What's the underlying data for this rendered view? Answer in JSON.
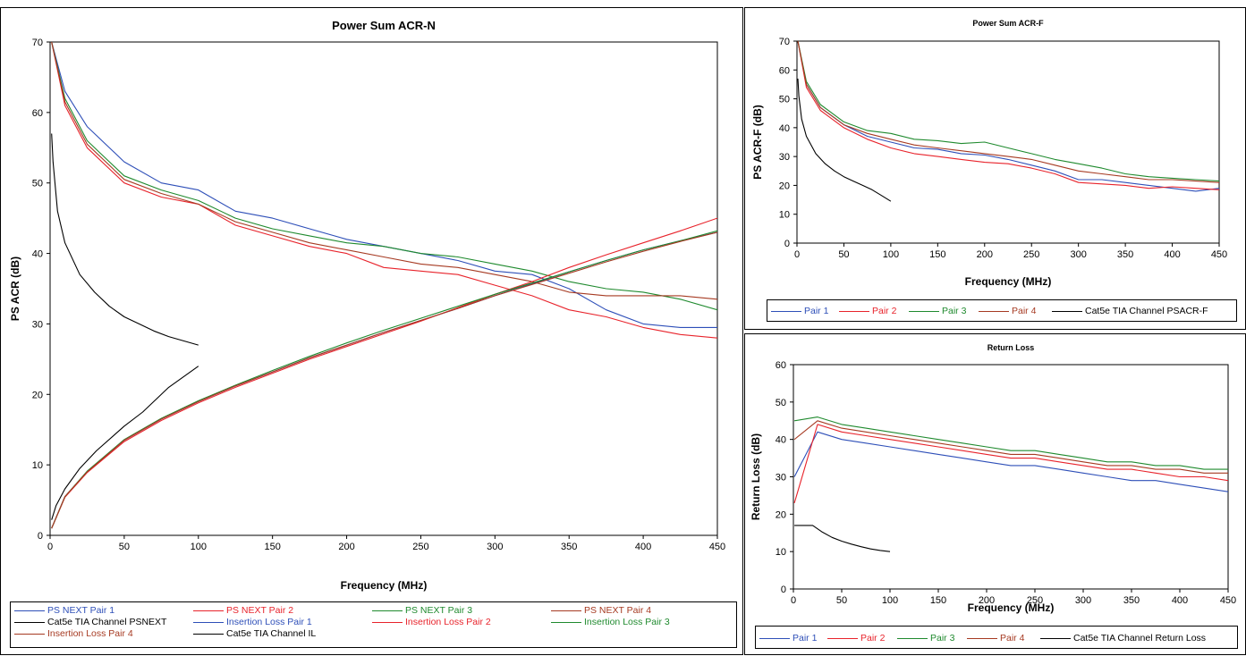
{
  "chart_data": [
    {
      "id": "acrn",
      "type": "line",
      "title": "Power Sum ACR-N",
      "xlabel": "Frequency (MHz)",
      "ylabel": "PS ACR (dB)",
      "xlim": [
        0,
        450
      ],
      "ylim": [
        0,
        70
      ],
      "xticks": [
        0,
        50,
        100,
        150,
        200,
        250,
        300,
        350,
        400,
        450
      ],
      "yticks": [
        0,
        10,
        20,
        30,
        40,
        50,
        60,
        70
      ],
      "grid": false,
      "legend_position": "bottom",
      "series": [
        {
          "name": "PS NEXT Pair 1",
          "color": "#2e4fb8",
          "x": [
            1,
            10,
            25,
            50,
            75,
            100,
            125,
            150,
            175,
            200,
            225,
            250,
            275,
            300,
            325,
            350,
            375,
            400,
            425,
            450
          ],
          "y": [
            70,
            63,
            58,
            53,
            50,
            49,
            46,
            45,
            43.5,
            42,
            41,
            40,
            39,
            37.5,
            37,
            35,
            32,
            30,
            29.5,
            29.5
          ]
        },
        {
          "name": "PS NEXT Pair 2",
          "color": "#e8232b",
          "x": [
            1,
            10,
            25,
            50,
            75,
            100,
            125,
            150,
            175,
            200,
            225,
            250,
            275,
            300,
            325,
            350,
            375,
            400,
            425,
            450
          ],
          "y": [
            70,
            61,
            55,
            50,
            48,
            47,
            44,
            42.5,
            41,
            40,
            38,
            37.5,
            37,
            35.5,
            34,
            32,
            31,
            29.5,
            28.5,
            28
          ]
        },
        {
          "name": "PS NEXT Pair 3",
          "color": "#1f8a2e",
          "x": [
            1,
            10,
            25,
            50,
            75,
            100,
            125,
            150,
            175,
            200,
            225,
            250,
            275,
            300,
            325,
            350,
            375,
            400,
            425,
            450
          ],
          "y": [
            70,
            62,
            56,
            51,
            49,
            47.5,
            45,
            43.5,
            42.5,
            41.5,
            41,
            40,
            39.5,
            38.5,
            37.5,
            36,
            35,
            34.5,
            33.5,
            32
          ]
        },
        {
          "name": "PS NEXT Pair 4",
          "color": "#a63a22",
          "x": [
            1,
            10,
            25,
            50,
            75,
            100,
            125,
            150,
            175,
            200,
            225,
            250,
            275,
            300,
            325,
            350,
            375,
            400,
            425,
            450
          ],
          "y": [
            70,
            61.5,
            55.5,
            50.5,
            48.5,
            47,
            44.5,
            43,
            41.5,
            40.5,
            39.5,
            38.5,
            38,
            37,
            36,
            34.5,
            34,
            34,
            34,
            33.5
          ]
        },
        {
          "name": "Cat5e TIA Channel PSNEXT",
          "color": "#000000",
          "x": [
            1,
            2,
            5,
            10,
            20,
            30,
            40,
            50,
            60,
            70,
            80,
            90,
            100
          ],
          "y": [
            57,
            53,
            46,
            41.5,
            37,
            34.5,
            32.5,
            31,
            30,
            29,
            28.2,
            27.6,
            27
          ]
        },
        {
          "name": "Insertion Loss Pair 1",
          "color": "#2e4fb8",
          "x": [
            1,
            10,
            25,
            50,
            75,
            100,
            125,
            150,
            175,
            200,
            225,
            250,
            275,
            300,
            325,
            350,
            375,
            400,
            425,
            450
          ],
          "y": [
            1,
            5.5,
            9,
            13.5,
            16.5,
            19,
            21.2,
            23.2,
            25.2,
            27,
            28.8,
            30.5,
            32.2,
            34,
            35.7,
            37.4,
            39,
            40.5,
            41.8,
            43
          ]
        },
        {
          "name": "Insertion Loss Pair 2",
          "color": "#e8232b",
          "x": [
            1,
            10,
            25,
            50,
            75,
            100,
            125,
            150,
            175,
            200,
            225,
            250,
            275,
            300,
            325,
            350,
            375,
            400,
            425,
            450
          ],
          "y": [
            1,
            5.4,
            8.9,
            13.3,
            16.3,
            18.8,
            21,
            23,
            25,
            26.8,
            28.6,
            30.4,
            32.3,
            34.2,
            36,
            38,
            39.8,
            41.5,
            43.2,
            45
          ]
        },
        {
          "name": "Insertion Loss Pair 3",
          "color": "#1f8a2e",
          "x": [
            1,
            10,
            25,
            50,
            75,
            100,
            125,
            150,
            175,
            200,
            225,
            250,
            275,
            300,
            325,
            350,
            375,
            400,
            425,
            450
          ],
          "y": [
            1,
            5.5,
            9.1,
            13.6,
            16.6,
            19.1,
            21.3,
            23.4,
            25.4,
            27.3,
            29.1,
            30.8,
            32.5,
            34.2,
            35.8,
            37.4,
            39,
            40.5,
            41.8,
            43.2
          ]
        },
        {
          "name": "Insertion Loss Pair 4",
          "color": "#a63a22",
          "x": [
            1,
            10,
            25,
            50,
            75,
            100,
            125,
            150,
            175,
            200,
            225,
            250,
            275,
            300,
            325,
            350,
            375,
            400,
            425,
            450
          ],
          "y": [
            1,
            5.5,
            9,
            13.5,
            16.5,
            19,
            21.2,
            23.2,
            25.2,
            27,
            28.8,
            30.5,
            32.2,
            34,
            35.6,
            37.2,
            38.8,
            40.3,
            41.7,
            43
          ]
        },
        {
          "name": "Cat5e TIA Channel IL",
          "color": "#000000",
          "x": [
            1,
            4,
            10,
            20,
            31.25,
            50,
            62.5,
            80,
            100
          ],
          "y": [
            2.2,
            4.2,
            6.6,
            9.5,
            12,
            15.5,
            17.5,
            21,
            24
          ]
        }
      ]
    },
    {
      "id": "acrf",
      "type": "line",
      "title": "Power Sum ACR-F",
      "xlabel": "Frequency (MHz)",
      "ylabel": "PS ACR-F (dB)",
      "xlim": [
        0,
        450
      ],
      "ylim": [
        0,
        70
      ],
      "xticks": [
        0,
        50,
        100,
        150,
        200,
        250,
        300,
        350,
        400,
        450
      ],
      "yticks": [
        0,
        10,
        20,
        30,
        40,
        50,
        60,
        70
      ],
      "grid": false,
      "legend_position": "bottom",
      "series": [
        {
          "name": "Pair 1",
          "color": "#2e4fb8",
          "x": [
            1,
            10,
            25,
            50,
            75,
            100,
            125,
            150,
            175,
            200,
            225,
            250,
            275,
            300,
            325,
            350,
            375,
            400,
            425,
            450
          ],
          "y": [
            70,
            55,
            47,
            41,
            37,
            35,
            33,
            32.5,
            31,
            30.5,
            29,
            27,
            25,
            22,
            22,
            21,
            20,
            19,
            18,
            19
          ]
        },
        {
          "name": "Pair 2",
          "color": "#e8232b",
          "x": [
            1,
            10,
            25,
            50,
            75,
            100,
            125,
            150,
            175,
            200,
            225,
            250,
            275,
            300,
            325,
            350,
            375,
            400,
            425,
            450
          ],
          "y": [
            70,
            54,
            46,
            40,
            36,
            33,
            31,
            30,
            29,
            28,
            27.5,
            26,
            24,
            21,
            20.5,
            20,
            19,
            19.5,
            19,
            18.5
          ]
        },
        {
          "name": "Pair 3",
          "color": "#1f8a2e",
          "x": [
            1,
            10,
            25,
            50,
            75,
            100,
            125,
            150,
            175,
            200,
            225,
            250,
            275,
            300,
            325,
            350,
            375,
            400,
            425,
            450
          ],
          "y": [
            70,
            56,
            48,
            42,
            39,
            38,
            36,
            35.5,
            34.5,
            35,
            33,
            31,
            29,
            27.5,
            26,
            24,
            23,
            22.5,
            22,
            21.5
          ]
        },
        {
          "name": "Pair 4",
          "color": "#a63a22",
          "x": [
            1,
            10,
            25,
            50,
            75,
            100,
            125,
            150,
            175,
            200,
            225,
            250,
            275,
            300,
            325,
            350,
            375,
            400,
            425,
            450
          ],
          "y": [
            70,
            55,
            47,
            41,
            38,
            36,
            34,
            33,
            32,
            31,
            30,
            29,
            27,
            25,
            24,
            23,
            22,
            22,
            21.5,
            21
          ]
        },
        {
          "name": "Cat5e TIA Channel PSACR-F",
          "color": "#000000",
          "x": [
            1,
            2,
            5,
            10,
            20,
            30,
            40,
            50,
            60,
            70,
            80,
            90,
            100
          ],
          "y": [
            57,
            51,
            43,
            37,
            31,
            27.5,
            25,
            23,
            21.5,
            20,
            18.5,
            16.5,
            14.5
          ]
        }
      ]
    },
    {
      "id": "rl",
      "type": "line",
      "title": "Return Loss",
      "xlabel": "Frequency (MHz)",
      "ylabel": "Return Loss (dB)",
      "xlim": [
        0,
        450
      ],
      "ylim": [
        0,
        60
      ],
      "xticks": [
        0,
        50,
        100,
        150,
        200,
        250,
        300,
        350,
        400,
        450
      ],
      "yticks": [
        0,
        10,
        20,
        30,
        40,
        50,
        60
      ],
      "grid": false,
      "legend_position": "bottom",
      "series": [
        {
          "name": "Pair 1",
          "color": "#2e4fb8",
          "x": [
            1,
            25,
            50,
            75,
            100,
            125,
            150,
            175,
            200,
            225,
            250,
            275,
            300,
            325,
            350,
            375,
            400,
            425,
            450
          ],
          "y": [
            30,
            42,
            40,
            39,
            38,
            37,
            36,
            35,
            34,
            33,
            33,
            32,
            31,
            30,
            29,
            29,
            28,
            27,
            26
          ]
        },
        {
          "name": "Pair 2",
          "color": "#e8232b",
          "x": [
            1,
            25,
            50,
            75,
            100,
            125,
            150,
            175,
            200,
            225,
            250,
            275,
            300,
            325,
            350,
            375,
            400,
            425,
            450
          ],
          "y": [
            23,
            44,
            42,
            41,
            40,
            39,
            38,
            37,
            36,
            35,
            35,
            34,
            33,
            32,
            32,
            31,
            30,
            30,
            29
          ]
        },
        {
          "name": "Pair 3",
          "color": "#1f8a2e",
          "x": [
            1,
            25,
            50,
            75,
            100,
            125,
            150,
            175,
            200,
            225,
            250,
            275,
            300,
            325,
            350,
            375,
            400,
            425,
            450
          ],
          "y": [
            45,
            46,
            44,
            43,
            42,
            41,
            40,
            39,
            38,
            37,
            37,
            36,
            35,
            34,
            34,
            33,
            33,
            32,
            32
          ]
        },
        {
          "name": "Pair 4",
          "color": "#a63a22",
          "x": [
            1,
            25,
            50,
            75,
            100,
            125,
            150,
            175,
            200,
            225,
            250,
            275,
            300,
            325,
            350,
            375,
            400,
            425,
            450
          ],
          "y": [
            40,
            45,
            43,
            42,
            41,
            40,
            39,
            38,
            37,
            36,
            36,
            35,
            34,
            33,
            33,
            32,
            32,
            31,
            31
          ]
        },
        {
          "name": "Cat5e TIA Channel Return Loss",
          "color": "#000000",
          "x": [
            1,
            10,
            20,
            30,
            40,
            50,
            60,
            70,
            80,
            90,
            100
          ],
          "y": [
            17,
            17,
            17,
            15.2,
            13.8,
            12.8,
            12,
            11.3,
            10.7,
            10.3,
            10
          ]
        }
      ]
    }
  ]
}
